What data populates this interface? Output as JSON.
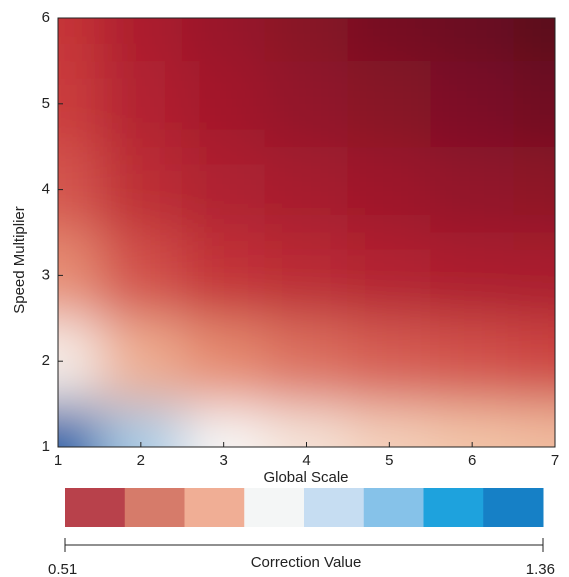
{
  "chart_data": {
    "type": "heatmap",
    "x_label": "Global Scale",
    "y_label": "Speed Multiplier",
    "x": [
      1,
      2,
      3,
      4,
      5,
      6,
      7
    ],
    "y": [
      1,
      2,
      3,
      4,
      5,
      6
    ],
    "z": [
      [
        1.36,
        1.2,
        1.1,
        1.05,
        1.0,
        0.97,
        0.95
      ],
      [
        1.08,
        0.92,
        0.84,
        0.8,
        0.77,
        0.75,
        0.73
      ],
      [
        0.85,
        0.75,
        0.69,
        0.66,
        0.63,
        0.61,
        0.6
      ],
      [
        0.76,
        0.67,
        0.62,
        0.59,
        0.57,
        0.55,
        0.54
      ],
      [
        0.72,
        0.63,
        0.58,
        0.55,
        0.53,
        0.51,
        0.49
      ],
      [
        0.7,
        0.61,
        0.56,
        0.53,
        0.5,
        0.48,
        0.45
      ]
    ],
    "colormap": [
      "#5a0b1f",
      "#a3182c",
      "#c9373a",
      "#e58a70",
      "#f3c4a8",
      "#f7f5f4",
      "#8fbfe0",
      "#1c5fa8"
    ],
    "xlim": [
      1,
      7
    ],
    "ylim": [
      1,
      6
    ],
    "xticks": [
      1,
      2,
      3,
      4,
      5,
      6,
      7
    ],
    "yticks": [
      1,
      2,
      3,
      4,
      5,
      6
    ],
    "colorbar": {
      "label": "Correction Value",
      "range": [
        0.51,
        1.36
      ],
      "colors": [
        "#b8414b",
        "#d67b6a",
        "#f0ae95",
        "#f4f6f6",
        "#c6ddf2",
        "#86c2e9",
        "#1ea2dd",
        "#1680c6"
      ]
    }
  }
}
